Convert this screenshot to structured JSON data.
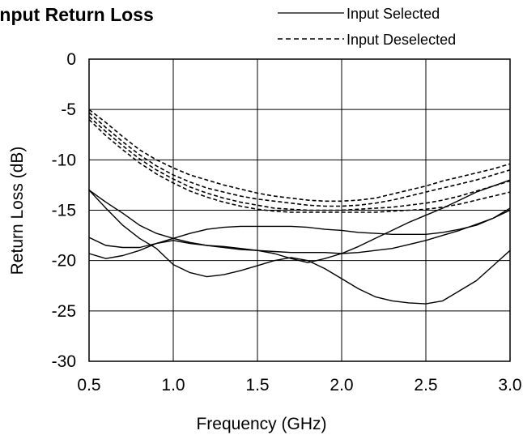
{
  "chart_data": {
    "type": "line",
    "title": "Input Return Loss",
    "xlabel": "Frequency (GHz)",
    "ylabel": "Return Loss (dB)",
    "xlim": [
      0.5,
      3.0
    ],
    "ylim": [
      -30,
      0
    ],
    "x_ticks": [
      "0.5",
      "1.0",
      "1.5",
      "2.0",
      "2.5",
      "3.0"
    ],
    "y_ticks": [
      "0",
      "-5",
      "-10",
      "-15",
      "-20",
      "-25",
      "-30"
    ],
    "grid": true,
    "legend": [
      {
        "label": "Input Selected",
        "style": "solid"
      },
      {
        "label": "Input Deselected",
        "style": "dashed"
      }
    ],
    "series": [
      {
        "group": "Input Selected",
        "style": "solid",
        "x": [
          0.5,
          0.6,
          0.7,
          0.8,
          0.9,
          1.0,
          1.1,
          1.2,
          1.3,
          1.4,
          1.5,
          1.6,
          1.7,
          1.8,
          1.9,
          2.0,
          2.1,
          2.2,
          2.3,
          2.4,
          2.5,
          2.6,
          2.7,
          2.8,
          2.9,
          3.0
        ],
        "y": [
          -13.0,
          -14.8,
          -16.5,
          -17.8,
          -18.8,
          -20.4,
          -21.2,
          -21.6,
          -21.4,
          -21.0,
          -20.5,
          -20.0,
          -19.7,
          -20.0,
          -20.8,
          -21.8,
          -22.8,
          -23.6,
          -24.0,
          -24.2,
          -24.3,
          -24.0,
          -23.0,
          -22.0,
          -20.5,
          -19.0
        ]
      },
      {
        "group": "Input Selected",
        "style": "solid",
        "x": [
          0.5,
          0.6,
          0.7,
          0.8,
          0.9,
          1.0,
          1.1,
          1.2,
          1.3,
          1.4,
          1.5,
          1.6,
          1.7,
          1.8,
          1.9,
          2.0,
          2.1,
          2.2,
          2.3,
          2.4,
          2.5,
          2.6,
          2.7,
          2.8,
          2.9,
          3.0
        ],
        "y": [
          -17.7,
          -18.5,
          -18.7,
          -18.7,
          -18.3,
          -17.8,
          -17.3,
          -16.9,
          -16.7,
          -16.6,
          -16.6,
          -16.6,
          -16.6,
          -16.7,
          -16.9,
          -17.0,
          -17.2,
          -17.3,
          -17.4,
          -17.4,
          -17.4,
          -17.2,
          -16.9,
          -16.5,
          -15.8,
          -14.8
        ]
      },
      {
        "group": "Input Selected",
        "style": "solid",
        "x": [
          0.5,
          0.6,
          0.7,
          0.8,
          0.9,
          1.0,
          1.1,
          1.2,
          1.3,
          1.4,
          1.5,
          1.6,
          1.7,
          1.8,
          1.9,
          2.0,
          2.1,
          2.2,
          2.3,
          2.4,
          2.5,
          2.6,
          2.7,
          2.8,
          2.9,
          3.0
        ],
        "y": [
          -13.0,
          -14.2,
          -15.3,
          -16.5,
          -17.3,
          -17.8,
          -18.2,
          -18.5,
          -18.7,
          -18.9,
          -19.0,
          -19.3,
          -19.8,
          -20.2,
          -19.8,
          -19.3,
          -18.6,
          -17.8,
          -17.0,
          -16.2,
          -15.5,
          -14.8,
          -14.0,
          -13.2,
          -12.6,
          -12.0
        ]
      },
      {
        "group": "Input Selected",
        "style": "solid",
        "x": [
          0.5,
          0.6,
          0.7,
          0.8,
          0.9,
          1.0,
          1.1,
          1.2,
          1.3,
          1.4,
          1.5,
          1.6,
          1.7,
          1.8,
          1.9,
          2.0,
          2.1,
          2.2,
          2.3,
          2.4,
          2.5,
          2.6,
          2.7,
          2.8,
          2.9,
          3.0
        ],
        "y": [
          -19.3,
          -19.8,
          -19.5,
          -19.0,
          -18.3,
          -18.0,
          -18.3,
          -18.5,
          -18.6,
          -18.8,
          -19.0,
          -19.1,
          -19.2,
          -19.2,
          -19.2,
          -19.3,
          -19.2,
          -19.0,
          -18.8,
          -18.4,
          -18.0,
          -17.5,
          -17.0,
          -16.4,
          -15.8,
          -15.0
        ]
      },
      {
        "group": "Input Deselected",
        "style": "dashed",
        "x": [
          0.5,
          0.6,
          0.7,
          0.8,
          0.9,
          1.0,
          1.1,
          1.2,
          1.3,
          1.4,
          1.5,
          1.6,
          1.7,
          1.8,
          1.9,
          2.0,
          2.1,
          2.2,
          2.3,
          2.4,
          2.5,
          2.6,
          2.7,
          2.8,
          2.9,
          3.0
        ],
        "y": [
          -5.0,
          -6.3,
          -7.7,
          -9.0,
          -10.0,
          -10.8,
          -11.5,
          -12.0,
          -12.5,
          -12.9,
          -13.3,
          -13.6,
          -13.8,
          -14.0,
          -14.1,
          -14.1,
          -14.0,
          -13.8,
          -13.4,
          -13.0,
          -12.6,
          -12.1,
          -11.7,
          -11.3,
          -10.9,
          -10.4
        ]
      },
      {
        "group": "Input Deselected",
        "style": "dashed",
        "x": [
          0.5,
          0.6,
          0.7,
          0.8,
          0.9,
          1.0,
          1.1,
          1.2,
          1.3,
          1.4,
          1.5,
          1.6,
          1.7,
          1.8,
          1.9,
          2.0,
          2.1,
          2.2,
          2.3,
          2.4,
          2.5,
          2.6,
          2.7,
          2.8,
          2.9,
          3.0
        ],
        "y": [
          -5.3,
          -6.8,
          -8.2,
          -9.5,
          -10.6,
          -11.5,
          -12.2,
          -12.8,
          -13.2,
          -13.6,
          -13.9,
          -14.1,
          -14.3,
          -14.5,
          -14.6,
          -14.6,
          -14.5,
          -14.3,
          -14.0,
          -13.6,
          -13.2,
          -12.8,
          -12.4,
          -12.0,
          -11.5,
          -11.0
        ]
      },
      {
        "group": "Input Deselected",
        "style": "dashed",
        "x": [
          0.5,
          0.6,
          0.7,
          0.8,
          0.9,
          1.0,
          1.1,
          1.2,
          1.3,
          1.4,
          1.5,
          1.6,
          1.7,
          1.8,
          1.9,
          2.0,
          2.1,
          2.2,
          2.3,
          2.4,
          2.5,
          2.6,
          2.7,
          2.8,
          2.9,
          3.0
        ],
        "y": [
          -5.7,
          -7.2,
          -8.6,
          -9.9,
          -11.0,
          -11.9,
          -12.7,
          -13.3,
          -13.8,
          -14.2,
          -14.5,
          -14.8,
          -14.9,
          -15.0,
          -15.0,
          -15.0,
          -14.9,
          -14.8,
          -14.7,
          -14.5,
          -14.3,
          -14.0,
          -13.6,
          -13.1,
          -12.6,
          -12.1
        ]
      },
      {
        "group": "Input Deselected",
        "style": "dashed",
        "x": [
          0.5,
          0.6,
          0.7,
          0.8,
          0.9,
          1.0,
          1.1,
          1.2,
          1.3,
          1.4,
          1.5,
          1.6,
          1.7,
          1.8,
          1.9,
          2.0,
          2.1,
          2.2,
          2.3,
          2.4,
          2.5,
          2.6,
          2.7,
          2.8,
          2.9,
          3.0
        ],
        "y": [
          -6.0,
          -7.6,
          -9.0,
          -10.3,
          -11.4,
          -12.3,
          -13.1,
          -13.7,
          -14.2,
          -14.6,
          -14.9,
          -15.1,
          -15.2,
          -15.2,
          -15.2,
          -15.2,
          -15.2,
          -15.2,
          -15.1,
          -15.0,
          -14.9,
          -14.7,
          -14.4,
          -14.0,
          -13.6,
          -13.2
        ]
      }
    ]
  }
}
